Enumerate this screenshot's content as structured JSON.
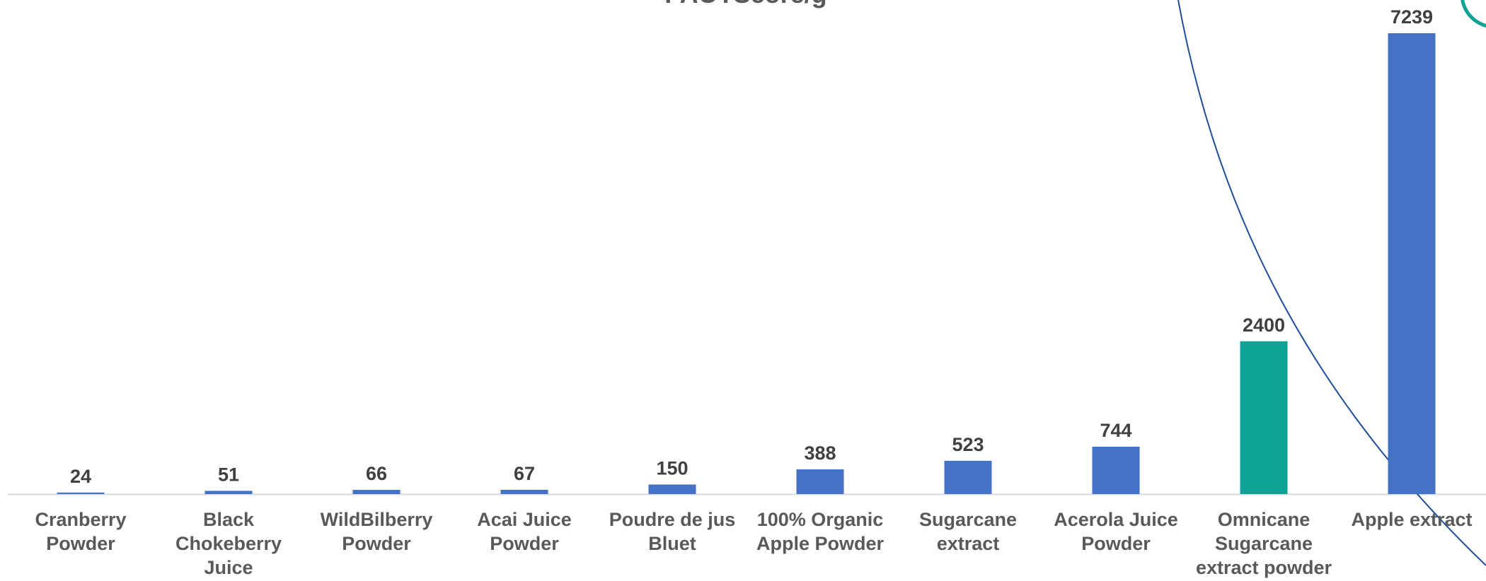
{
  "chart_data": {
    "type": "bar",
    "title": "PAOTScore/g",
    "categories": [
      "Cranberry Powder",
      "Black Chokeberry Juice",
      "WildBilberry Powder",
      "Acai Juice Powder",
      "Poudre de jus Bluet",
      "100% Organic Apple Powder",
      "Sugarcane extract",
      "Acerola Juice Powder",
      "Omnicane Sugarcane extract powder",
      "Apple extract"
    ],
    "values": [
      24,
      51,
      66,
      67,
      150,
      388,
      523,
      744,
      2400,
      7239
    ],
    "colors": [
      "#4472c4",
      "#4472c4",
      "#4472c4",
      "#4472c4",
      "#4472c4",
      "#4472c4",
      "#4472c4",
      "#4472c4",
      "#0fa396",
      "#4472c4"
    ]
  }
}
